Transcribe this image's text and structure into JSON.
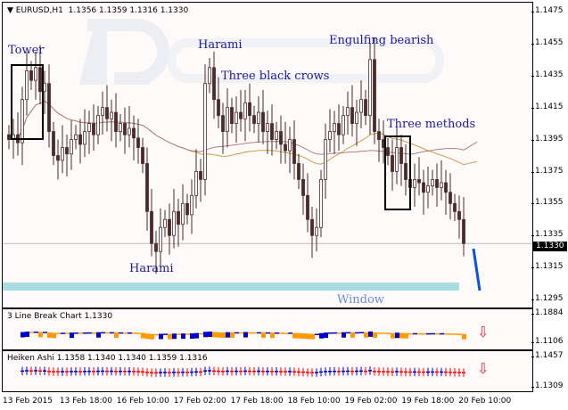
{
  "header": {
    "symbol": "EURUSD,H1",
    "ohlc": "1.1356 1.1359 1.1316 1.1330"
  },
  "watermark": "RoboForex",
  "price_axis": [
    "1.1475",
    "1.1455",
    "1.1435",
    "1.1415",
    "1.1395",
    "1.1375",
    "1.1355",
    "1.1335",
    "1.1315",
    "1.1295"
  ],
  "current_price": "1.1330",
  "annotations": {
    "tower": "Tower",
    "harami1": "Harami",
    "three_black_crows": "Three black crows",
    "engulfing": "Engulfing bearish",
    "three_methods": "Three methods",
    "harami2": "Harami",
    "window": "Window"
  },
  "indicator1": {
    "title": "3 Line Break Chart 1.1330",
    "axis": [
      "1.1884",
      "1.1106"
    ],
    "signal": "arrow-down-icon"
  },
  "indicator2": {
    "title": "Heiken Ashi 1.1358 1.1340 1.1340 1.1359 1.1316",
    "axis": [
      "1.1457",
      "1.1309"
    ],
    "signal": "arrow-down-icon"
  },
  "time_axis": [
    "13 Feb 2015",
    "13 Feb 18:00",
    "16 Feb 10:00",
    "17 Feb 02:00",
    "17 Feb 18:00",
    "18 Feb 10:00",
    "19 Feb 02:00",
    "19 Feb 18:00",
    "20 Feb 10:00"
  ],
  "colors": {
    "candle": "#4a2a2a",
    "ma1": "#c8a040",
    "ma2": "#b08080",
    "window": "#a8dce0",
    "bull": "#0000cc",
    "bear": "#ff0000",
    "lb_bear": "#ff9900",
    "arrow": "#e0204a"
  },
  "chart_data": {
    "type": "candlestick",
    "ylim": [
      1.1295,
      1.1475
    ],
    "closes": [
      1.1395,
      1.1398,
      1.1393,
      1.142,
      1.1438,
      1.1432,
      1.144,
      1.1425,
      1.143,
      1.14,
      1.1385,
      1.1382,
      1.139,
      1.1386,
      1.1395,
      1.1398,
      1.1392,
      1.14,
      1.1405,
      1.1398,
      1.141,
      1.1415,
      1.1408,
      1.1412,
      1.14,
      1.1405,
      1.1398,
      1.1402,
      1.1396,
      1.139,
      1.138,
      1.135,
      1.133,
      1.1325,
      1.134,
      1.1345,
      1.1335,
      1.135,
      1.1342,
      1.1355,
      1.1348,
      1.136,
      1.1375,
      1.137,
      1.143,
      1.144,
      1.142,
      1.141,
      1.14,
      1.1415,
      1.1405,
      1.1412,
      1.1408,
      1.1418,
      1.141,
      1.1405,
      1.1412,
      1.14,
      1.1405,
      1.1395,
      1.14,
      1.1392,
      1.1388,
      1.1395,
      1.138,
      1.137,
      1.136,
      1.1345,
      1.1335,
      1.134,
      1.137,
      1.1395,
      1.14,
      1.1405,
      1.1398,
      1.141,
      1.1415,
      1.1405,
      1.1412,
      1.142,
      1.141,
      1.1445,
      1.14,
      1.1395,
      1.139,
      1.1385,
      1.1375,
      1.139,
      1.138,
      1.137,
      1.1365,
      1.137,
      1.1368,
      1.1362,
      1.1366,
      1.137,
      1.1365,
      1.1368,
      1.1362,
      1.1355,
      1.135,
      1.1345,
      1.133
    ]
  }
}
